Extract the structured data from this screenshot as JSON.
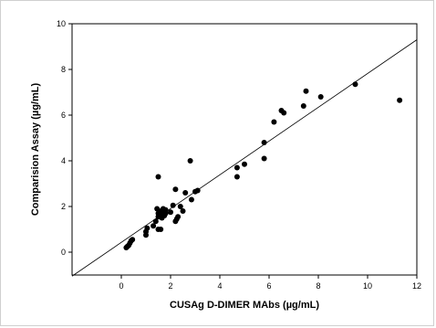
{
  "chart_data": {
    "type": "scatter",
    "xlabel": "CUSAg D-DIMER MAbs (µg/mL)",
    "ylabel": "Comparision Assay (µg/mL)",
    "xlim": [
      -2,
      12
    ],
    "ylim": [
      -1,
      10
    ],
    "xticks": [
      0,
      2,
      4,
      6,
      8,
      10,
      12
    ],
    "yticks": [
      0,
      2,
      4,
      6,
      8,
      10
    ],
    "grid": false,
    "marker_color": "#000000",
    "fit_line": {
      "x": [
        -2,
        12
      ],
      "y": [
        -1.05,
        9.3
      ]
    },
    "series": [
      {
        "x": [
          0.2,
          0.25,
          0.3,
          0.35,
          0.4,
          0.45,
          1.0,
          1.0,
          1.05,
          1.3,
          1.4,
          1.45,
          1.5,
          1.5,
          1.5,
          1.55,
          1.6,
          1.6,
          1.65,
          1.7,
          1.7,
          1.75,
          1.8,
          1.8,
          1.5,
          2.0,
          2.1,
          2.2,
          2.2,
          2.25,
          2.3,
          2.4,
          2.5,
          2.6,
          2.8,
          2.85,
          3.0,
          3.1,
          4.7,
          4.7,
          5.0,
          5.8,
          5.8,
          6.2,
          6.5,
          6.6,
          7.4,
          7.5,
          8.1,
          9.5,
          11.3
        ],
        "y": [
          0.2,
          0.25,
          0.3,
          0.4,
          0.5,
          0.55,
          0.75,
          0.9,
          1.05,
          1.15,
          1.35,
          1.9,
          1.0,
          1.55,
          1.7,
          1.6,
          1.0,
          1.8,
          1.5,
          1.7,
          1.9,
          1.6,
          1.7,
          1.85,
          3.3,
          1.75,
          2.05,
          1.35,
          2.75,
          1.45,
          1.55,
          2.0,
          1.8,
          2.6,
          4.0,
          2.3,
          2.65,
          2.7,
          3.3,
          3.7,
          3.85,
          4.1,
          4.8,
          5.7,
          6.2,
          6.1,
          6.4,
          7.05,
          6.8,
          7.35,
          6.65
        ]
      }
    ]
  }
}
